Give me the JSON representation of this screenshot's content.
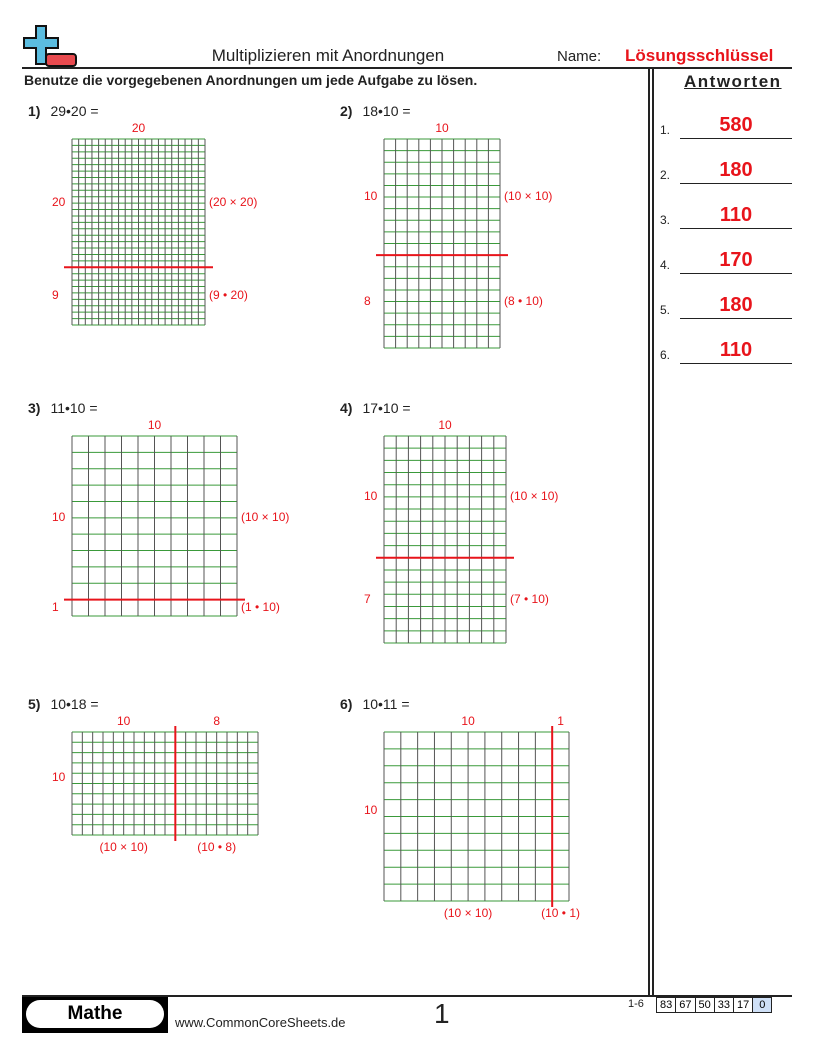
{
  "header": {
    "title": "Multiplizieren mit Anordnungen",
    "name_label": "Name:",
    "name_value": "Lösungsschlüssel",
    "logo": "plus-minus-logo-icon"
  },
  "instructions": "Benutze die vorgegebenen Anordnungen um jede Aufgabe zu lösen.",
  "answers": {
    "heading": "Antworten",
    "items": [
      {
        "n": "1.",
        "v": "580"
      },
      {
        "n": "2.",
        "v": "180"
      },
      {
        "n": "3.",
        "v": "110"
      },
      {
        "n": "4.",
        "v": "170"
      },
      {
        "n": "5.",
        "v": "180"
      },
      {
        "n": "6.",
        "v": "110"
      }
    ]
  },
  "colors": {
    "accent": "#e8141b",
    "grid_h": "#3a9a3a",
    "grid_v": "#555555"
  },
  "problems": [
    {
      "num": "1)",
      "expr": "29•20 =",
      "rows": 29,
      "cols": 20,
      "split": "h",
      "split_at": 20,
      "top": "20",
      "a": "20",
      "b": "9",
      "pa": "(20 × 20)",
      "pb": "(9 • 20)"
    },
    {
      "num": "2)",
      "expr": "18•10 =",
      "rows": 18,
      "cols": 10,
      "split": "h",
      "split_at": 10,
      "top": "10",
      "a": "10",
      "b": "8",
      "pa": "(10 × 10)",
      "pb": "(8 • 10)"
    },
    {
      "num": "3)",
      "expr": "11•10 =",
      "rows": 11,
      "cols": 10,
      "split": "h",
      "split_at": 10,
      "top": "10",
      "a": "10",
      "b": "1",
      "pa": "(10 × 10)",
      "pb": "(1 • 10)"
    },
    {
      "num": "4)",
      "expr": "17•10 =",
      "rows": 17,
      "cols": 10,
      "split": "h",
      "split_at": 10,
      "top": "10",
      "a": "10",
      "b": "7",
      "pa": "(10 × 10)",
      "pb": "(7 • 10)"
    },
    {
      "num": "5)",
      "expr": "10•18 =",
      "rows": 10,
      "cols": 18,
      "split": "v",
      "split_at": 10,
      "left": "10",
      "a": "10",
      "b": "8",
      "pa": "(10 × 10)",
      "pb": "(10 • 8)"
    },
    {
      "num": "6)",
      "expr": "10•11 =",
      "rows": 10,
      "cols": 11,
      "split": "v",
      "split_at": 10,
      "left": "10",
      "a": "10",
      "b": "1",
      "pa": "(10 × 10)",
      "pb": "(10 • 1)"
    }
  ],
  "footer": {
    "brand": "Mathe",
    "url": "www.CommonCoreSheets.de",
    "page": "1",
    "range": "1-6",
    "scores": [
      "83",
      "67",
      "50",
      "33",
      "17",
      "0"
    ]
  }
}
